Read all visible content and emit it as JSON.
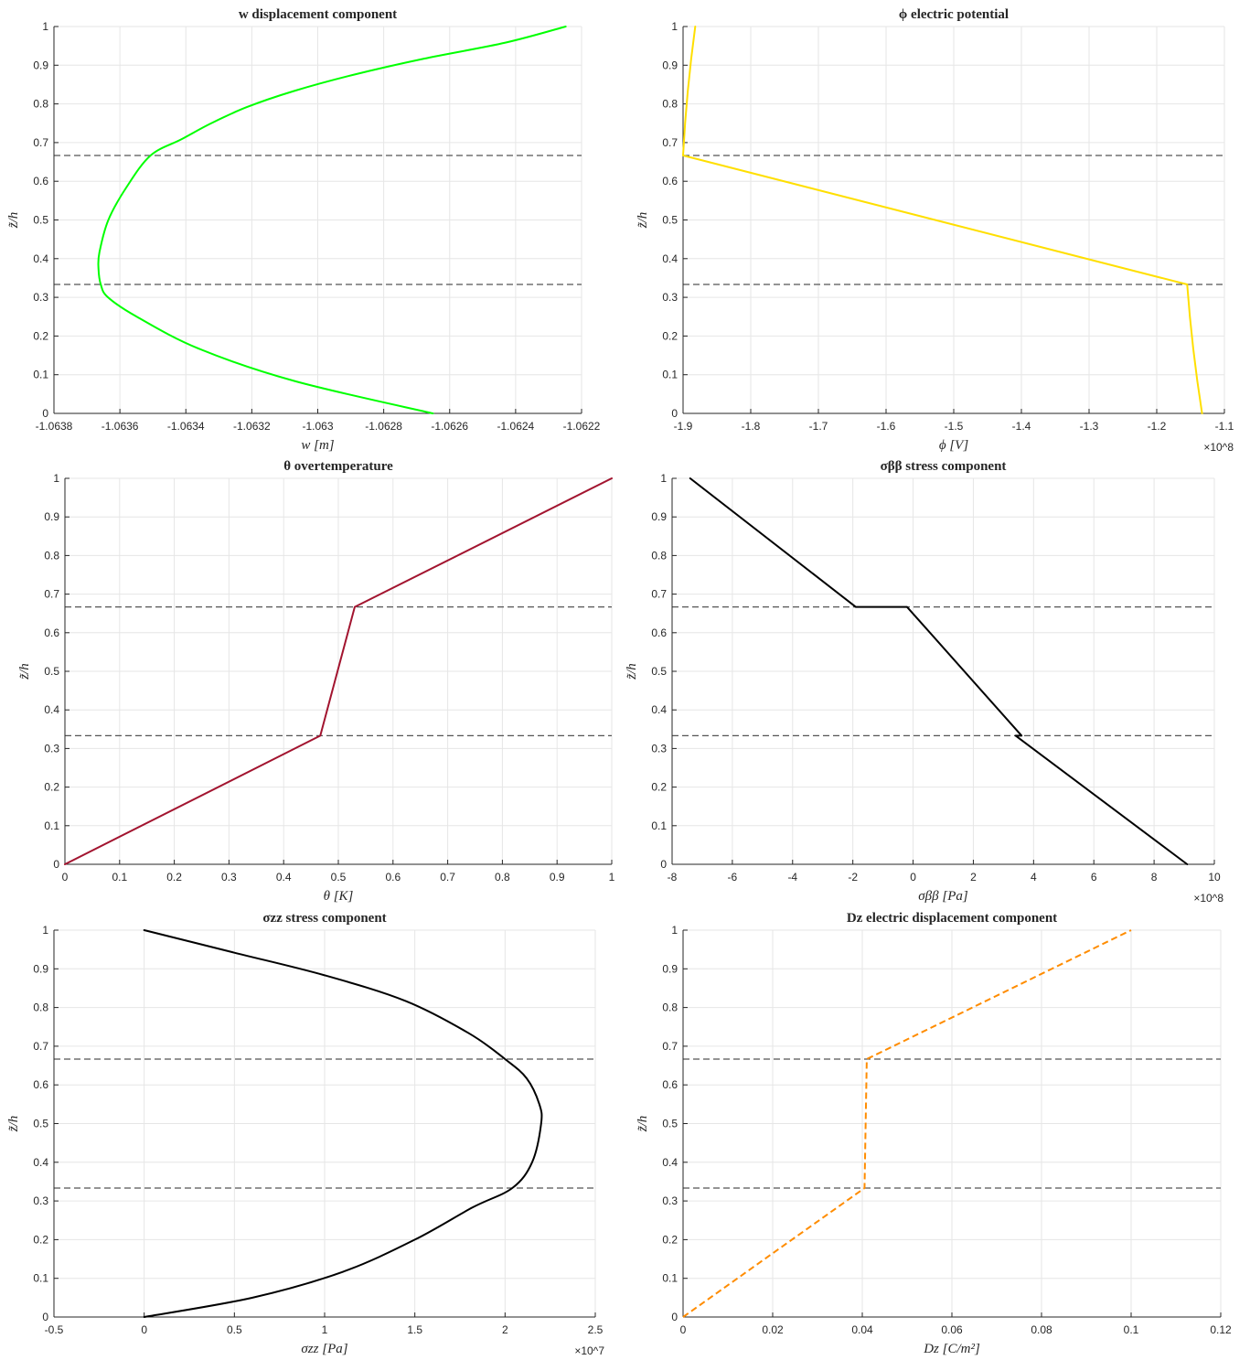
{
  "chart_data": [
    {
      "type": "line",
      "title": "w displacement component",
      "xlabel": "w [m]",
      "ylabel": "z̃/h",
      "xlim": [
        -1.0638,
        -1.0622
      ],
      "ylim": [
        0,
        1
      ],
      "xticks": [
        "-1.0638",
        "-1.0636",
        "-1.0634",
        "-1.0632",
        "-1.063",
        "-1.0628",
        "-1.0626",
        "-1.0624",
        "-1.0622"
      ],
      "yticks": [
        "0",
        "0.1",
        "0.2",
        "0.3",
        "0.4",
        "0.5",
        "0.6",
        "0.7",
        "0.8",
        "0.9",
        "1"
      ],
      "exponent": "",
      "grid": true,
      "layer_interfaces": [
        0.3333,
        0.6667
      ],
      "series": [
        {
          "color": "#00ff00",
          "style": "solid",
          "curve": "smooth",
          "x": [
            -1.062651,
            -1.063069,
            -1.063359,
            -1.063549,
            -1.063636,
            -1.063658,
            -1.063665,
            -1.063662,
            -1.063635,
            -1.063581,
            -1.063507,
            -1.063414,
            -1.063323,
            -1.063215,
            -1.063072,
            -1.062893,
            -1.062679,
            -1.062431,
            -1.062248
          ],
          "y": [
            0.0,
            0.0833,
            0.1667,
            0.25,
            0.3,
            0.3333,
            0.375,
            0.4167,
            0.5,
            0.5833,
            0.6667,
            0.7083,
            0.75,
            0.7917,
            0.8333,
            0.875,
            0.9167,
            0.9583,
            1.0
          ]
        }
      ]
    },
    {
      "type": "line",
      "title": "ϕ electric potential",
      "xlabel": "ϕ [V]",
      "ylabel": "z̃/h",
      "xlim": [
        -1.9,
        -1.1
      ],
      "ylim": [
        0,
        1
      ],
      "xticks": [
        "-1.9",
        "-1.8",
        "-1.7",
        "-1.6",
        "-1.5",
        "-1.4",
        "-1.3",
        "-1.2",
        "-1.1"
      ],
      "yticks": [
        "0",
        "0.1",
        "0.2",
        "0.3",
        "0.4",
        "0.5",
        "0.6",
        "0.7",
        "0.8",
        "0.9",
        "1"
      ],
      "exponent": "×10^8",
      "grid": true,
      "layer_interfaces": [
        0.3333,
        0.6667
      ],
      "series": [
        {
          "color": "#ffdf00",
          "style": "solid",
          "curve": "straight",
          "x": [
            -1.133,
            -1.14,
            -1.146,
            -1.151,
            -1.155,
            -1.9,
            -1.897,
            -1.893,
            -1.888,
            -1.882
          ],
          "y": [
            0.0,
            0.0833,
            0.1667,
            0.25,
            0.3333,
            0.6667,
            0.75,
            0.8333,
            0.9167,
            1.0
          ]
        }
      ]
    },
    {
      "type": "line",
      "title": "θ overtemperature",
      "xlabel": "θ [K]",
      "ylabel": "z̃/h",
      "xlim": [
        0,
        1
      ],
      "ylim": [
        0,
        1
      ],
      "xticks": [
        "0",
        "0.1",
        "0.2",
        "0.3",
        "0.4",
        "0.5",
        "0.6",
        "0.7",
        "0.8",
        "0.9",
        "1"
      ],
      "yticks": [
        "0",
        "0.1",
        "0.2",
        "0.3",
        "0.4",
        "0.5",
        "0.6",
        "0.7",
        "0.8",
        "0.9",
        "1"
      ],
      "exponent": "",
      "grid": true,
      "layer_interfaces": [
        0.3333,
        0.6667
      ],
      "series": [
        {
          "color": "#a2142f",
          "style": "solid",
          "curve": "straight",
          "x": [
            0.0,
            0.467,
            0.53,
            1.0
          ],
          "y": [
            0.0,
            0.3333,
            0.6667,
            1.0
          ]
        }
      ]
    },
    {
      "type": "line",
      "title": "σββ stress component",
      "xlabel": "σββ [Pa]",
      "ylabel": "z̃/h",
      "xlim": [
        -8,
        10
      ],
      "ylim": [
        0,
        1
      ],
      "xticks": [
        "-8",
        "-6",
        "-4",
        "-2",
        "0",
        "2",
        "4",
        "6",
        "8",
        "10"
      ],
      "yticks": [
        "0",
        "0.1",
        "0.2",
        "0.3",
        "0.4",
        "0.5",
        "0.6",
        "0.7",
        "0.8",
        "0.9",
        "1"
      ],
      "exponent": "×10^8",
      "grid": true,
      "layer_interfaces": [
        0.3333,
        0.6667
      ],
      "series": [
        {
          "color": "#000000",
          "style": "solid",
          "curve": "straight",
          "x": [
            9.1,
            3.4,
            3.6,
            -0.2,
            -1.9,
            -7.4
          ],
          "y": [
            0.0,
            0.3333,
            0.3333,
            0.6667,
            0.6667,
            1.0
          ]
        }
      ]
    },
    {
      "type": "line",
      "title": "σzz stress component",
      "xlabel": "σzz [Pa]",
      "ylabel": "z̃/h",
      "xlim": [
        -0.5,
        2.5
      ],
      "ylim": [
        0,
        1
      ],
      "xticks": [
        "-0.5",
        "0",
        "0.5",
        "1",
        "1.5",
        "2",
        "2.5"
      ],
      "yticks": [
        "0",
        "0.1",
        "0.2",
        "0.3",
        "0.4",
        "0.5",
        "0.6",
        "0.7",
        "0.8",
        "0.9",
        "1"
      ],
      "exponent": "×10^7",
      "grid": true,
      "layer_interfaces": [
        0.3333,
        0.6667
      ],
      "series": [
        {
          "color": "#000000",
          "style": "solid",
          "curve": "smooth",
          "x": [
            0.0,
            0.6,
            1.1,
            1.5,
            1.82,
            2.04,
            2.15,
            2.2,
            2.19,
            2.12,
            2.0,
            1.8,
            1.45,
            1.0,
            0.5,
            0.0
          ],
          "y": [
            0.0,
            0.05,
            0.1167,
            0.2,
            0.2833,
            0.3333,
            0.4,
            0.5,
            0.55,
            0.6167,
            0.6667,
            0.7333,
            0.8167,
            0.8833,
            0.9417,
            1.0
          ]
        }
      ]
    },
    {
      "type": "line",
      "title": "Dz electric displacement component",
      "xlabel": "Dz [C/m²]",
      "ylabel": "z̃/h",
      "xlim": [
        0,
        0.12
      ],
      "ylim": [
        0,
        1
      ],
      "xticks": [
        "0",
        "0.02",
        "0.04",
        "0.06",
        "0.08",
        "0.1",
        "0.12"
      ],
      "yticks": [
        "0",
        "0.1",
        "0.2",
        "0.3",
        "0.4",
        "0.5",
        "0.6",
        "0.7",
        "0.8",
        "0.9",
        "1"
      ],
      "exponent": "",
      "grid": true,
      "layer_interfaces": [
        0.3333,
        0.6667
      ],
      "series": [
        {
          "color": "#ff8c00",
          "style": "dashed",
          "curve": "straight",
          "x": [
            0.0,
            0.0405,
            0.041,
            0.1
          ],
          "y": [
            0.0,
            0.3333,
            0.6667,
            1.0
          ]
        }
      ]
    }
  ],
  "colors": {
    "axis": "#262626",
    "grid": "#e6e6e6",
    "interface": "#555555"
  }
}
